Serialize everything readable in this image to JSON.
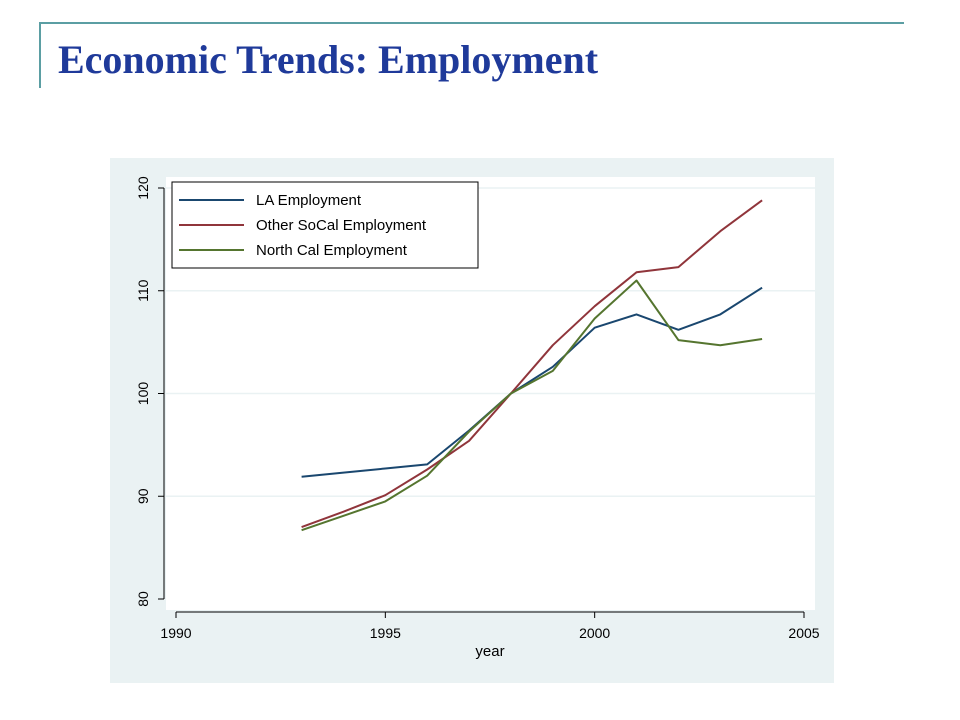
{
  "slide": {
    "title": "Economic Trends: Employment"
  },
  "colors": {
    "title": "#1f3a9a",
    "decor_line": "#5b9ea3",
    "chart_bg": "#eaf2f3",
    "plot_bg": "#ffffff",
    "grid": "#eaf2f3"
  },
  "chart_data": {
    "type": "line",
    "title": "",
    "xlabel": "year",
    "ylabel": "",
    "xlim": [
      1990,
      2005
    ],
    "ylim": [
      80,
      120
    ],
    "x_ticks": [
      1990,
      1995,
      2000,
      2005
    ],
    "y_ticks": [
      80,
      90,
      100,
      110,
      120
    ],
    "grid": true,
    "legend_position": "top-left",
    "x": [
      1993,
      1994,
      1995,
      1996,
      1997,
      1998,
      1999,
      2000,
      2001,
      2002,
      2003,
      2004
    ],
    "series": [
      {
        "name": "LA Employment",
        "color": "#1a476f",
        "values": [
          91.9,
          92.3,
          92.7,
          93.1,
          96.4,
          100.0,
          102.6,
          106.4,
          107.7,
          106.2,
          107.7,
          110.3
        ]
      },
      {
        "name": "Other SoCal Employment",
        "color": "#90353b",
        "values": [
          87.0,
          88.5,
          90.1,
          92.6,
          95.4,
          100.0,
          104.7,
          108.5,
          111.8,
          112.3,
          115.8,
          118.8
        ]
      },
      {
        "name": "North Cal Employment",
        "color": "#55752f",
        "values": [
          86.7,
          88.1,
          89.5,
          92.0,
          96.3,
          100.0,
          102.2,
          107.3,
          111.0,
          105.2,
          104.7,
          105.3
        ]
      }
    ]
  }
}
